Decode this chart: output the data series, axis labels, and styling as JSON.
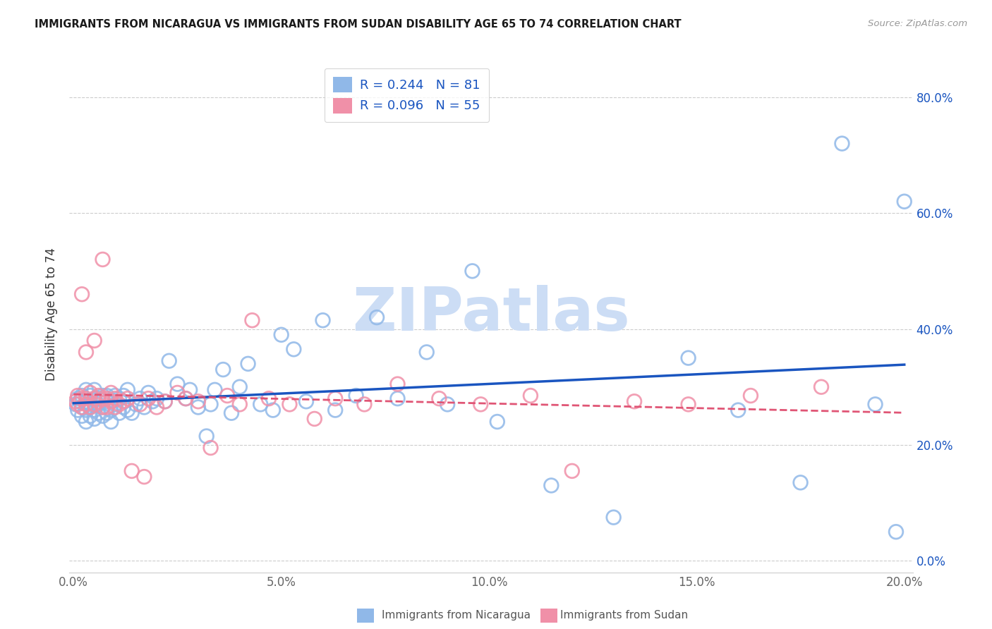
{
  "title": "IMMIGRANTS FROM NICARAGUA VS IMMIGRANTS FROM SUDAN DISABILITY AGE 65 TO 74 CORRELATION CHART",
  "source": "Source: ZipAtlas.com",
  "ylabel": "Disability Age 65 to 74",
  "xlim": [
    -0.001,
    0.202
  ],
  "ylim": [
    -0.02,
    0.87
  ],
  "xticks": [
    0.0,
    0.05,
    0.1,
    0.15,
    0.2
  ],
  "yticks": [
    0.0,
    0.2,
    0.4,
    0.6,
    0.8
  ],
  "xtick_labels": [
    "0.0%",
    "5.0%",
    "10.0%",
    "15.0%",
    "20.0%"
  ],
  "ytick_labels_right": [
    "0.0%",
    "20.0%",
    "40.0%",
    "60.0%",
    "80.0%"
  ],
  "nicaragua_R": 0.244,
  "nicaragua_N": 81,
  "sudan_R": 0.096,
  "sudan_N": 55,
  "nicaragua_color": "#90b8e8",
  "sudan_color": "#f090a8",
  "nicaragua_line_color": "#1a55c0",
  "sudan_line_color": "#e05575",
  "watermark": "ZIPatlas",
  "watermark_color": "#ccddf5",
  "legend_label_nicaragua": "Immigrants from Nicaragua",
  "legend_label_sudan": "Immigrants from Sudan",
  "nicaragua_x": [
    0.0005,
    0.001,
    0.001,
    0.0015,
    0.002,
    0.002,
    0.002,
    0.003,
    0.003,
    0.003,
    0.003,
    0.004,
    0.004,
    0.004,
    0.004,
    0.005,
    0.005,
    0.005,
    0.005,
    0.006,
    0.006,
    0.006,
    0.007,
    0.007,
    0.007,
    0.008,
    0.008,
    0.008,
    0.009,
    0.009,
    0.01,
    0.01,
    0.011,
    0.011,
    0.012,
    0.012,
    0.013,
    0.013,
    0.014,
    0.015,
    0.016,
    0.017,
    0.018,
    0.019,
    0.02,
    0.022,
    0.023,
    0.025,
    0.027,
    0.028,
    0.03,
    0.032,
    0.033,
    0.034,
    0.036,
    0.038,
    0.04,
    0.042,
    0.045,
    0.048,
    0.05,
    0.053,
    0.056,
    0.06,
    0.063,
    0.068,
    0.073,
    0.078,
    0.085,
    0.09,
    0.096,
    0.102,
    0.115,
    0.13,
    0.148,
    0.16,
    0.175,
    0.185,
    0.193,
    0.198,
    0.2
  ],
  "nicaragua_y": [
    0.27,
    0.28,
    0.26,
    0.275,
    0.285,
    0.265,
    0.25,
    0.275,
    0.295,
    0.26,
    0.24,
    0.27,
    0.285,
    0.265,
    0.25,
    0.28,
    0.26,
    0.295,
    0.245,
    0.27,
    0.255,
    0.28,
    0.265,
    0.285,
    0.25,
    0.275,
    0.255,
    0.285,
    0.26,
    0.24,
    0.27,
    0.285,
    0.255,
    0.28,
    0.265,
    0.285,
    0.26,
    0.295,
    0.255,
    0.27,
    0.28,
    0.265,
    0.29,
    0.275,
    0.28,
    0.275,
    0.345,
    0.305,
    0.28,
    0.295,
    0.265,
    0.215,
    0.27,
    0.295,
    0.33,
    0.255,
    0.3,
    0.34,
    0.27,
    0.26,
    0.39,
    0.365,
    0.275,
    0.415,
    0.26,
    0.285,
    0.42,
    0.28,
    0.36,
    0.27,
    0.5,
    0.24,
    0.13,
    0.075,
    0.35,
    0.26,
    0.135,
    0.72,
    0.27,
    0.05,
    0.62
  ],
  "sudan_x": [
    0.0005,
    0.001,
    0.001,
    0.002,
    0.002,
    0.002,
    0.003,
    0.003,
    0.003,
    0.004,
    0.004,
    0.005,
    0.005,
    0.005,
    0.006,
    0.006,
    0.007,
    0.007,
    0.007,
    0.008,
    0.008,
    0.009,
    0.009,
    0.01,
    0.01,
    0.011,
    0.012,
    0.013,
    0.014,
    0.016,
    0.017,
    0.018,
    0.02,
    0.022,
    0.025,
    0.027,
    0.03,
    0.033,
    0.037,
    0.04,
    0.043,
    0.047,
    0.052,
    0.058,
    0.063,
    0.07,
    0.078,
    0.088,
    0.098,
    0.11,
    0.12,
    0.135,
    0.148,
    0.163,
    0.18
  ],
  "sudan_y": [
    0.275,
    0.27,
    0.285,
    0.265,
    0.28,
    0.46,
    0.27,
    0.28,
    0.36,
    0.265,
    0.29,
    0.27,
    0.28,
    0.38,
    0.275,
    0.285,
    0.265,
    0.28,
    0.52,
    0.265,
    0.28,
    0.275,
    0.29,
    0.265,
    0.28,
    0.27,
    0.275,
    0.28,
    0.155,
    0.27,
    0.145,
    0.28,
    0.265,
    0.275,
    0.29,
    0.28,
    0.275,
    0.195,
    0.285,
    0.27,
    0.415,
    0.28,
    0.27,
    0.245,
    0.28,
    0.27,
    0.305,
    0.28,
    0.27,
    0.285,
    0.155,
    0.275,
    0.27,
    0.285,
    0.3
  ]
}
